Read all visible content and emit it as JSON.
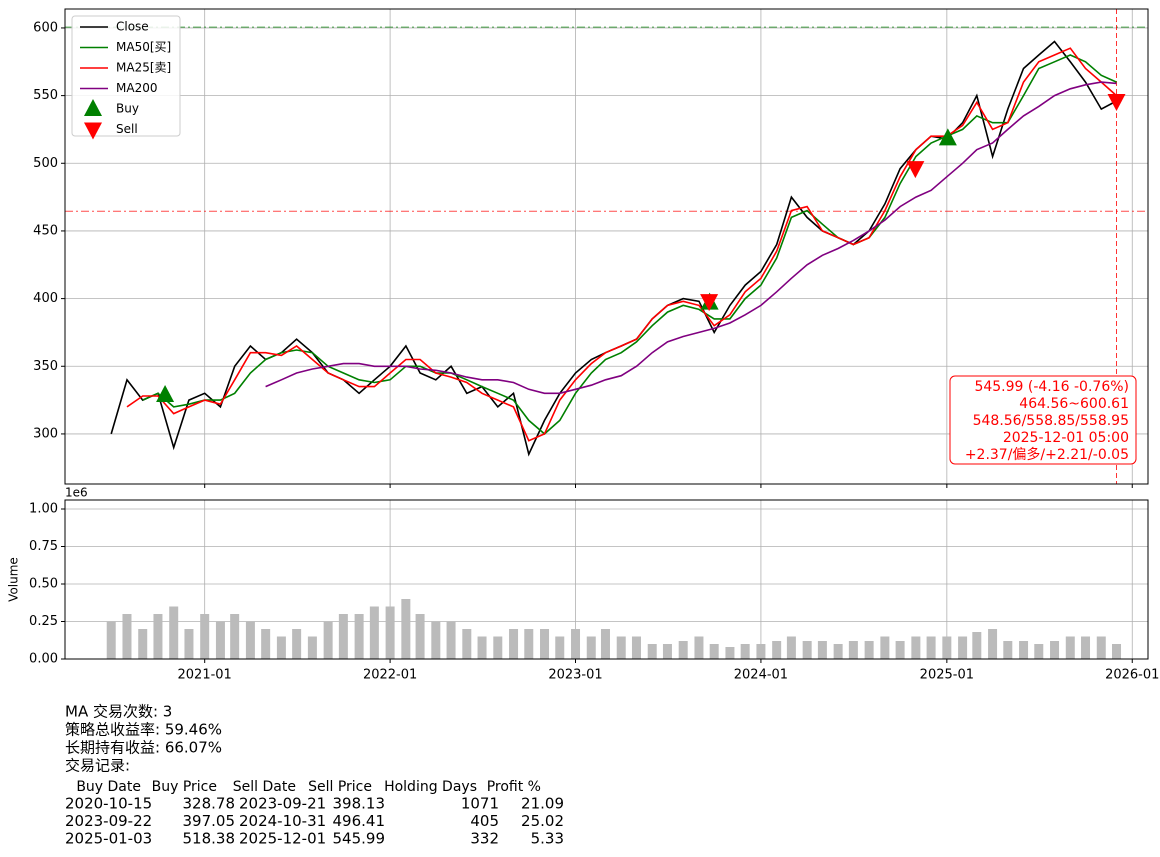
{
  "chart_data": [
    {
      "type": "line",
      "x": [
        "2020-07",
        "2020-08",
        "2020-09",
        "2020-10",
        "2020-11",
        "2020-12",
        "2021-01",
        "2021-02",
        "2021-03",
        "2021-04",
        "2021-05",
        "2021-06",
        "2021-07",
        "2021-08",
        "2021-09",
        "2021-10",
        "2021-11",
        "2021-12",
        "2022-01",
        "2022-02",
        "2022-03",
        "2022-04",
        "2022-05",
        "2022-06",
        "2022-07",
        "2022-08",
        "2022-09",
        "2022-10",
        "2022-11",
        "2022-12",
        "2023-01",
        "2023-02",
        "2023-03",
        "2023-04",
        "2023-05",
        "2023-06",
        "2023-07",
        "2023-08",
        "2023-09",
        "2023-10",
        "2023-11",
        "2023-12",
        "2024-01",
        "2024-02",
        "2024-03",
        "2024-04",
        "2024-05",
        "2024-06",
        "2024-07",
        "2024-08",
        "2024-09",
        "2024-10",
        "2024-11",
        "2024-12",
        "2025-01",
        "2025-02",
        "2025-03",
        "2025-04",
        "2025-05",
        "2025-06",
        "2025-07",
        "2025-08",
        "2025-09",
        "2025-10",
        "2025-11",
        "2025-12"
      ],
      "series": [
        {
          "name": "Close",
          "color": "#000000",
          "values": [
            300,
            340,
            325,
            330,
            290,
            325,
            330,
            320,
            350,
            365,
            355,
            360,
            370,
            360,
            345,
            340,
            330,
            340,
            350,
            365,
            345,
            340,
            350,
            330,
            335,
            320,
            330,
            285,
            310,
            330,
            345,
            355,
            360,
            365,
            370,
            385,
            395,
            400,
            398,
            375,
            395,
            410,
            420,
            440,
            475,
            460,
            450,
            445,
            440,
            450,
            470,
            496,
            510,
            520,
            518,
            530,
            550,
            505,
            540,
            570,
            580,
            590,
            575,
            560,
            540,
            546
          ]
        },
        {
          "name": "MA50[买]",
          "color": "#008000",
          "values": [
            null,
            null,
            325,
            330,
            320,
            322,
            325,
            325,
            330,
            345,
            355,
            360,
            362,
            360,
            350,
            345,
            340,
            338,
            340,
            350,
            350,
            345,
            345,
            340,
            335,
            330,
            325,
            310,
            300,
            310,
            330,
            345,
            355,
            360,
            368,
            380,
            390,
            395,
            392,
            385,
            385,
            400,
            410,
            430,
            460,
            465,
            455,
            445,
            440,
            445,
            460,
            485,
            505,
            515,
            520,
            525,
            535,
            530,
            530,
            550,
            570,
            575,
            580,
            575,
            565,
            560
          ]
        },
        {
          "name": "MA25[卖]",
          "color": "#ff0000",
          "values": [
            null,
            320,
            328,
            328,
            315,
            320,
            325,
            322,
            340,
            360,
            360,
            358,
            365,
            355,
            345,
            340,
            335,
            335,
            345,
            355,
            355,
            345,
            342,
            338,
            330,
            325,
            320,
            295,
            300,
            325,
            340,
            352,
            360,
            365,
            370,
            385,
            395,
            398,
            395,
            380,
            388,
            405,
            415,
            435,
            465,
            468,
            450,
            445,
            440,
            445,
            465,
            490,
            510,
            520,
            520,
            528,
            545,
            525,
            530,
            560,
            575,
            580,
            585,
            570,
            560,
            550
          ]
        },
        {
          "name": "MA200",
          "color": "#800080",
          "values": [
            null,
            null,
            null,
            null,
            null,
            null,
            null,
            null,
            null,
            null,
            335,
            340,
            345,
            348,
            350,
            352,
            352,
            350,
            350,
            350,
            348,
            347,
            345,
            342,
            340,
            340,
            338,
            333,
            330,
            330,
            333,
            336,
            340,
            343,
            350,
            360,
            368,
            372,
            375,
            378,
            382,
            388,
            395,
            405,
            415,
            425,
            432,
            437,
            443,
            450,
            458,
            468,
            475,
            480,
            490,
            500,
            510,
            515,
            525,
            535,
            542,
            550,
            555,
            558,
            560,
            559
          ]
        }
      ],
      "markers": [
        {
          "name": "Buy",
          "color": "#008000",
          "shape": "up",
          "x": [
            "2020-10-15",
            "2023-09-22",
            "2025-01-03"
          ],
          "values": [
            328.78,
            397.05,
            518.38
          ]
        },
        {
          "name": "Sell",
          "color": "#ff0000",
          "shape": "down",
          "x": [
            "2023-09-21",
            "2024-10-31",
            "2025-12-01"
          ],
          "values": [
            398.13,
            496.41,
            545.99
          ]
        }
      ],
      "hlines": [
        {
          "value": 600.61,
          "color": "#008000"
        },
        {
          "value": 464.56,
          "color": "#ff0000"
        }
      ],
      "vline": {
        "x": "2025-12-01",
        "color": "#ff0000"
      },
      "annotation": [
        "545.99 (-4.16 -0.76%)",
        "464.56~600.61",
        "548.56/558.85/558.95",
        "2025-12-01 05:00",
        "+2.37/偏多/+2.21/-0.05"
      ],
      "xlim": [
        "2020-04",
        "2026-02"
      ],
      "ylim": [
        263,
        614
      ],
      "yticks": [
        300,
        350,
        400,
        450,
        500,
        550,
        600
      ],
      "grid": true,
      "legend": "upper left"
    },
    {
      "type": "bar",
      "x": [
        "2020-07",
        "2020-08",
        "2020-09",
        "2020-10",
        "2020-11",
        "2020-12",
        "2021-01",
        "2021-02",
        "2021-03",
        "2021-04",
        "2021-05",
        "2021-06",
        "2021-07",
        "2021-08",
        "2021-09",
        "2021-10",
        "2021-11",
        "2021-12",
        "2022-01",
        "2022-02",
        "2022-03",
        "2022-04",
        "2022-05",
        "2022-06",
        "2022-07",
        "2022-08",
        "2022-09",
        "2022-10",
        "2022-11",
        "2022-12",
        "2023-01",
        "2023-02",
        "2023-03",
        "2023-04",
        "2023-05",
        "2023-06",
        "2023-07",
        "2023-08",
        "2023-09",
        "2023-10",
        "2023-11",
        "2023-12",
        "2024-01",
        "2024-02",
        "2024-03",
        "2024-04",
        "2024-05",
        "2024-06",
        "2024-07",
        "2024-08",
        "2024-09",
        "2024-10",
        "2024-11",
        "2024-12",
        "2025-01",
        "2025-02",
        "2025-03",
        "2025-04",
        "2025-05",
        "2025-06",
        "2025-07",
        "2025-08",
        "2025-09",
        "2025-10",
        "2025-11",
        "2025-12"
      ],
      "values": [
        0.25,
        0.3,
        0.2,
        0.3,
        0.35,
        0.2,
        0.3,
        0.25,
        0.3,
        0.25,
        0.2,
        0.15,
        0.2,
        0.15,
        0.25,
        0.3,
        0.3,
        0.35,
        0.35,
        0.4,
        0.3,
        0.25,
        0.25,
        0.2,
        0.15,
        0.15,
        0.2,
        0.2,
        0.2,
        0.15,
        0.2,
        0.15,
        0.2,
        0.15,
        0.15,
        0.1,
        0.1,
        0.12,
        0.15,
        0.1,
        0.08,
        0.1,
        0.1,
        0.12,
        0.15,
        0.12,
        0.12,
        0.1,
        0.12,
        0.12,
        0.15,
        0.12,
        0.15,
        0.15,
        0.15,
        0.15,
        0.18,
        0.2,
        0.12,
        0.12,
        0.1,
        0.12,
        0.15,
        0.15,
        0.15,
        0.1
      ],
      "color": "#bbbbbb",
      "ylabel": "Volume",
      "offset_label": "1e6",
      "xlim": [
        "2020-04",
        "2026-02"
      ],
      "xticks": [
        "2021-01",
        "2022-01",
        "2023-01",
        "2024-01",
        "2025-01",
        "2026-01"
      ],
      "ylim": [
        0,
        1.06
      ],
      "yticks": [
        {
          "value": 0,
          "label": "0.00"
        },
        {
          "value": 0.25,
          "label": "0.25"
        },
        {
          "value": 0.5,
          "label": "0.50"
        },
        {
          "value": 0.75,
          "label": "0.75"
        },
        {
          "value": 1,
          "label": "1.00"
        }
      ],
      "grid": true
    }
  ],
  "report": {
    "lines": [
      "MA 交易次数: 3",
      "策略总收益率: 59.46%",
      "长期持有收益: 66.07%",
      "交易记录:"
    ],
    "columns": [
      "Buy Date",
      "Buy Price",
      "Sell Date",
      "Sell Price",
      "Holding Days",
      "Profit %"
    ],
    "rows": [
      [
        "2020-10-15",
        328.78,
        "2023-09-21",
        398.13,
        1071,
        21.09
      ],
      [
        "2023-09-22",
        397.05,
        "2024-10-31",
        496.41,
        405,
        25.02
      ],
      [
        "2025-01-03",
        518.38,
        "2025-12-01",
        545.99,
        332,
        5.33
      ]
    ]
  }
}
